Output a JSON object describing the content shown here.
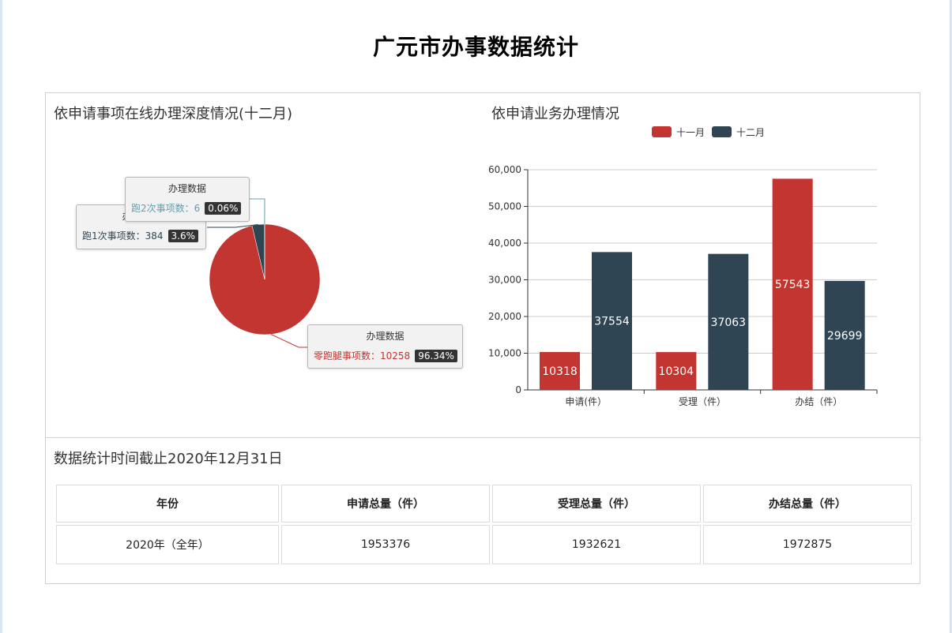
{
  "page": {
    "title": "广元市办事数据统计"
  },
  "pie_section": {
    "title": "依申请事项在线办理深度情况(十二月)"
  },
  "bar_section": {
    "title": "依申请业务办理情况"
  },
  "tooltips": [
    {
      "header": "办理数据",
      "label": "跑2次事项数：6",
      "pct": "0.06%"
    },
    {
      "header": "办理数据",
      "label": "跑1次事项数：384",
      "pct": "3.6%"
    },
    {
      "header": "办理数据",
      "label": "零跑腿事项数：10258",
      "pct": "96.34%"
    }
  ],
  "table_section": {
    "title": "数据统计时间截止2020年12月31日",
    "headers": [
      "年份",
      "申请总量（件）",
      "受理总量（件）",
      "办结总量（件）"
    ],
    "row": [
      "2020年（全年）",
      "1953376",
      "1932621",
      "1972875"
    ]
  },
  "colors": {
    "red": "#c23531",
    "navy": "#2f4554",
    "teal": "#61a0a8"
  },
  "chart_data": [
    {
      "type": "pie",
      "title": "依申请事项在线办理深度情况(十二月)",
      "series_name": "办理数据",
      "slices": [
        {
          "name": "零跑腿事项数",
          "value": 10258,
          "percent": 96.34,
          "color": "#c23531"
        },
        {
          "name": "跑1次事项数",
          "value": 384,
          "percent": 3.6,
          "color": "#2f4554"
        },
        {
          "name": "跑2次事项数",
          "value": 6,
          "percent": 0.06,
          "color": "#61a0a8"
        }
      ]
    },
    {
      "type": "bar",
      "title": "依申请业务办理情况",
      "categories": [
        "申请(件）",
        "受理（件）",
        "办结（件）"
      ],
      "series": [
        {
          "name": "十一月",
          "values": [
            10318,
            10304,
            57543
          ],
          "color": "#c23531"
        },
        {
          "name": "十二月",
          "values": [
            37554,
            37063,
            29699
          ],
          "color": "#2f4554"
        }
      ],
      "ylim": [
        0,
        60000
      ],
      "yticks": [
        "0",
        "10,000",
        "20,000",
        "30,000",
        "40,000",
        "50,000",
        "60,000"
      ],
      "grid": true,
      "legend": "top-center"
    }
  ]
}
